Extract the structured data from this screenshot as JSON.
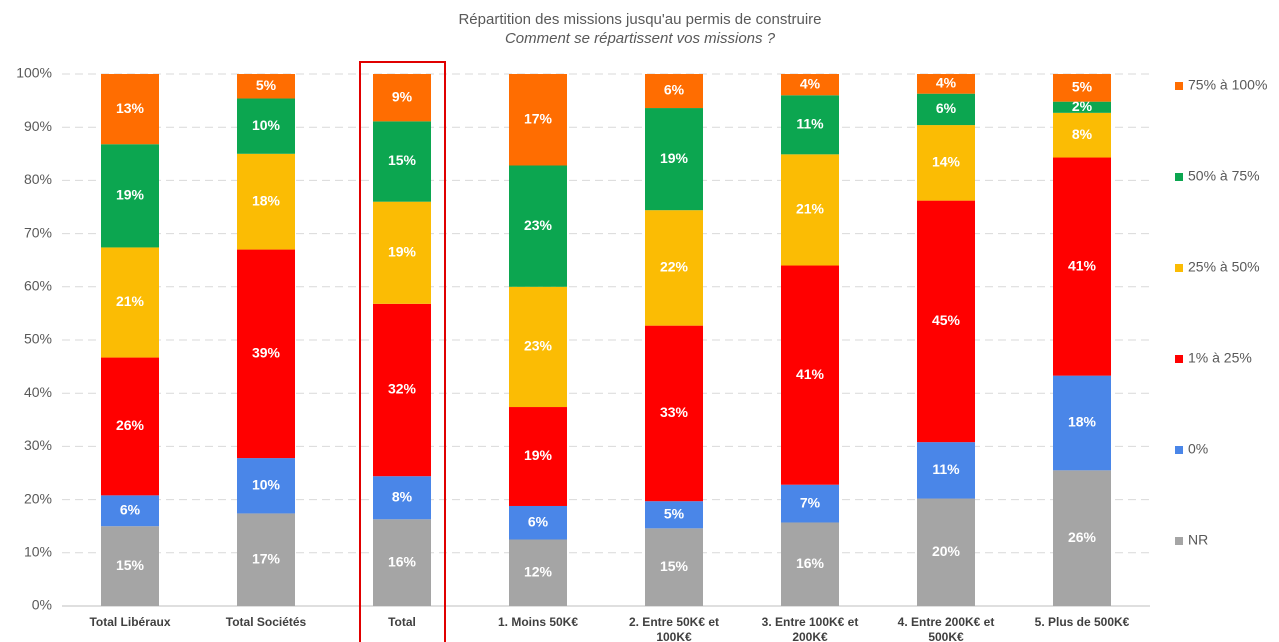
{
  "chart_data": {
    "type": "stacked-bar",
    "title": "Répartition des missions jusqu'au permis de construire",
    "subtitle": "Comment se répartissent vos missions ?",
    "categories": [
      "Total Libéraux",
      "Total Sociétés",
      "Total",
      "1. Moins 50K€",
      "2. Entre 50K€ et 100K€",
      "3. Entre 100K€ et 200K€",
      "4. Entre 200K€ et 500K€",
      "5. Plus de 500K€"
    ],
    "series": [
      {
        "name": "NR",
        "color": "#a5a5a5",
        "values": [
          15,
          17.4,
          16.3,
          12.5,
          14.6,
          15.7,
          20.2,
          25.5
        ],
        "value_labels": [
          "15%",
          "17%",
          "16%",
          "12%",
          "15%",
          "16%",
          "20%",
          "26%"
        ]
      },
      {
        "name": "0%",
        "color": "#4a86e8",
        "values": [
          5.8,
          10.4,
          8.1,
          6.3,
          5.1,
          7.1,
          10.6,
          17.8
        ],
        "value_labels": [
          "6%",
          "10%",
          "8%",
          "6%",
          "5%",
          "7%",
          "11%",
          "18%"
        ]
      },
      {
        "name": "1% à 25%",
        "color": "#ff0000",
        "values": [
          25.9,
          39.2,
          32.4,
          18.6,
          33.0,
          41.2,
          45.4,
          41.0
        ],
        "value_labels": [
          "26%",
          "39%",
          "32%",
          "19%",
          "33%",
          "41%",
          "45%",
          "41%"
        ]
      },
      {
        "name": "25% à 50%",
        "color": "#fbbc04",
        "values": [
          20.7,
          18.0,
          19.2,
          22.6,
          21.7,
          20.9,
          14.2,
          8.4
        ],
        "value_labels": [
          "21%",
          "18%",
          "19%",
          "23%",
          "22%",
          "21%",
          "14%",
          "8%"
        ]
      },
      {
        "name": "50% à 75%",
        "color": "#0ca650",
        "values": [
          19.4,
          10.4,
          15.1,
          22.8,
          19.2,
          11.1,
          5.9,
          2.1
        ],
        "value_labels": [
          "19%",
          "10%",
          "15%",
          "23%",
          "19%",
          "11%",
          "6%",
          "2%"
        ]
      },
      {
        "name": "75% à 100%",
        "color": "#ff6d01",
        "values": [
          13.2,
          4.6,
          8.9,
          17.2,
          6.4,
          4.0,
          3.7,
          5.2
        ],
        "value_labels": [
          "13%",
          "5%",
          "9%",
          "17%",
          "6%",
          "4%",
          "4%",
          "5%"
        ]
      }
    ],
    "ylim": [
      0,
      100
    ],
    "yticks": [
      {
        "value": 0,
        "label": "0%"
      },
      {
        "value": 10,
        "label": "10%"
      },
      {
        "value": 20,
        "label": "20%"
      },
      {
        "value": 30,
        "label": "30%"
      },
      {
        "value": 40,
        "label": "40%"
      },
      {
        "value": 50,
        "label": "50%"
      },
      {
        "value": 60,
        "label": "60%"
      },
      {
        "value": 70,
        "label": "70%"
      },
      {
        "value": 80,
        "label": "80%"
      },
      {
        "value": 90,
        "label": "90%"
      },
      {
        "value": 100,
        "label": "100%"
      }
    ],
    "grid": true,
    "legend": "right"
  }
}
